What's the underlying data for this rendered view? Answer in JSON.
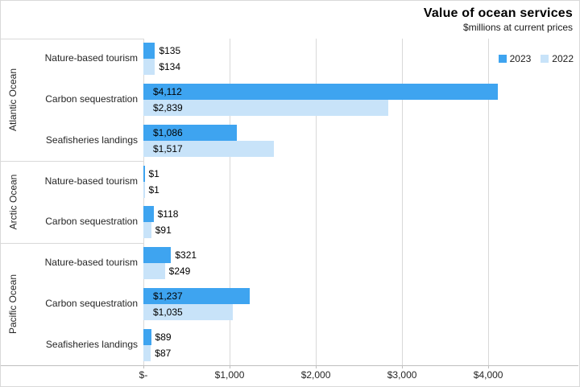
{
  "chart_data": {
    "type": "bar",
    "orientation": "horizontal",
    "title": "Value of ocean services",
    "subtitle": "$millions at current prices",
    "legend_position": "top-right",
    "grid": "vertical-major-only",
    "xlim": [
      0,
      5045
    ],
    "x_ticks": [
      {
        "value": 0,
        "label": "$-"
      },
      {
        "value": 1000,
        "label": "$1,000"
      },
      {
        "value": 2000,
        "label": "$2,000"
      },
      {
        "value": 3000,
        "label": "$3,000"
      },
      {
        "value": 4000,
        "label": "$4,000"
      }
    ],
    "series": [
      {
        "name": "2023",
        "color": "#3EA4F0"
      },
      {
        "name": "2022",
        "color": "#C8E3F9"
      }
    ],
    "groups": [
      {
        "name": "Atlantic Ocean",
        "items": [
          {
            "category": "Nature-based tourism",
            "values": [
              135,
              134
            ],
            "labels": [
              "$135",
              "$134"
            ]
          },
          {
            "category": "Carbon sequestration",
            "values": [
              4112,
              2839
            ],
            "labels": [
              "$4,112",
              "$2,839"
            ]
          },
          {
            "category": "Seafisheries landings",
            "values": [
              1086,
              1517
            ],
            "labels": [
              "$1,086",
              "$1,517"
            ]
          }
        ]
      },
      {
        "name": "Arctic Ocean",
        "items": [
          {
            "category": "Nature-based tourism",
            "values": [
              1,
              1
            ],
            "labels": [
              "$1",
              "$1"
            ]
          },
          {
            "category": "Carbon sequestration",
            "values": [
              118,
              91
            ],
            "labels": [
              "$118",
              "$91"
            ]
          }
        ]
      },
      {
        "name": "Pacific Ocean",
        "items": [
          {
            "category": "Nature-based tourism",
            "values": [
              321,
              249
            ],
            "labels": [
              "$321",
              "$249"
            ]
          },
          {
            "category": "Carbon sequestration",
            "values": [
              1237,
              1035
            ],
            "labels": [
              "$1,237",
              "$1,035"
            ]
          },
          {
            "category": "Seafisheries landings",
            "values": [
              89,
              87
            ],
            "labels": [
              "$89",
              "$87"
            ]
          }
        ]
      }
    ]
  }
}
